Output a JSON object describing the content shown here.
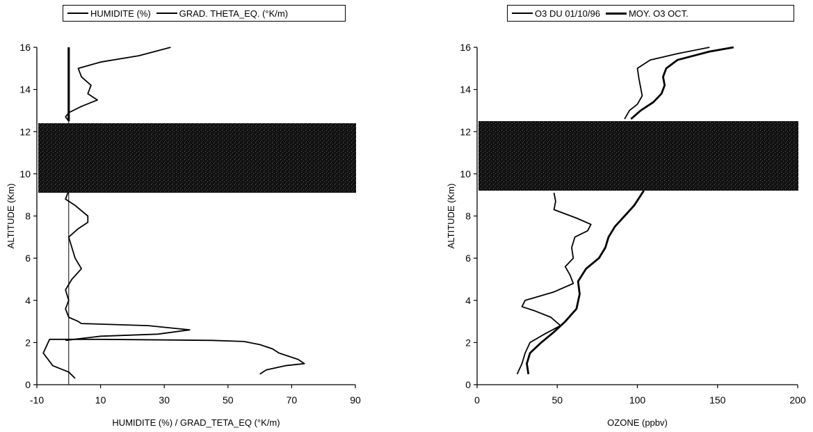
{
  "chart_data": [
    {
      "type": "line",
      "title": "",
      "xlabel": "HUMIDITE (%) / GRAD_TETA_EQ (°K/m)",
      "ylabel": "ALTITUDE (Km)",
      "xlim": [
        -10,
        90
      ],
      "ylim": [
        0,
        16
      ],
      "x_ticks": [
        "-10",
        "10",
        "30",
        "50",
        "70",
        "90"
      ],
      "y_ticks": [
        "0",
        "2",
        "4",
        "6",
        "8",
        "10",
        "12",
        "14",
        "16"
      ],
      "x_tick_values": [
        -10,
        10,
        30,
        50,
        70,
        90
      ],
      "y_tick_values": [
        0,
        2,
        4,
        6,
        8,
        10,
        12,
        14,
        16
      ],
      "legend": "top",
      "shaded_band": [
        9.1,
        12.4
      ],
      "series": [
        {
          "name": "HUMIDITE (%)",
          "points": [
            [
              60,
              0.5
            ],
            [
              62,
              0.7
            ],
            [
              68,
              0.9
            ],
            [
              74,
              1.0
            ],
            [
              72,
              1.2
            ],
            [
              66,
              1.5
            ],
            [
              64,
              1.7
            ],
            [
              60,
              1.9
            ],
            [
              55,
              2.05
            ],
            [
              45,
              2.1
            ],
            [
              10,
              2.15
            ],
            [
              -6,
              2.15
            ],
            [
              -8,
              1.5
            ],
            [
              -5,
              0.9
            ],
            [
              0,
              0.6
            ],
            [
              2,
              0.3
            ]
          ]
        },
        {
          "name": "GRAD. THETA_EQ. (°K/m)",
          "points": [
            [
              -1,
              2.1
            ],
            [
              10,
              2.3
            ],
            [
              28,
              2.4
            ],
            [
              38,
              2.6
            ],
            [
              25,
              2.8
            ],
            [
              4,
              2.9
            ],
            [
              3,
              3.0
            ],
            [
              0,
              3.2
            ],
            [
              -1,
              3.6
            ],
            [
              0,
              4.0
            ],
            [
              -1,
              4.5
            ],
            [
              1,
              5.0
            ],
            [
              4,
              5.5
            ],
            [
              2,
              6.0
            ],
            [
              1,
              6.5
            ],
            [
              0,
              7.0
            ],
            [
              3,
              7.4
            ],
            [
              6,
              7.7
            ],
            [
              6,
              8.0
            ],
            [
              2,
              8.5
            ],
            [
              -1,
              8.8
            ],
            [
              0,
              9.2
            ]
          ]
        },
        {
          "name": "",
          "points": [
            [
              0,
              12.5
            ],
            [
              -1,
              12.7
            ],
            [
              0,
              12.9
            ],
            [
              4,
              13.2
            ],
            [
              9,
              13.5
            ],
            [
              6,
              13.8
            ],
            [
              7,
              14.2
            ],
            [
              4,
              14.6
            ],
            [
              3,
              15.0
            ],
            [
              10,
              15.3
            ],
            [
              22,
              15.6
            ],
            [
              32,
              16.0
            ]
          ]
        },
        {
          "name": "",
          "points": [
            [
              0,
              12.5
            ],
            [
              0,
              16.0
            ]
          ]
        }
      ]
    },
    {
      "type": "line",
      "title": "",
      "xlabel": "OZONE (ppbv)",
      "ylabel": "ALTITUDE (Km)",
      "xlim": [
        0,
        200
      ],
      "ylim": [
        0,
        16
      ],
      "x_ticks": [
        "0",
        "50",
        "100",
        "150",
        "200"
      ],
      "y_ticks": [
        "0",
        "2",
        "4",
        "6",
        "8",
        "10",
        "12",
        "14",
        "16"
      ],
      "x_tick_values": [
        0,
        50,
        100,
        150,
        200
      ],
      "y_tick_values": [
        0,
        2,
        4,
        6,
        8,
        10,
        12,
        14,
        16
      ],
      "legend": "top",
      "shaded_band": [
        9.2,
        12.5
      ],
      "series": [
        {
          "name": "O3 DU 01/10/96",
          "points": [
            [
              25,
              0.5
            ],
            [
              28,
              1.0
            ],
            [
              30,
              1.5
            ],
            [
              33,
              2.0
            ],
            [
              42,
              2.4
            ],
            [
              52,
              2.8
            ],
            [
              46,
              3.2
            ],
            [
              36,
              3.5
            ],
            [
              28,
              3.7
            ],
            [
              30,
              4.0
            ],
            [
              48,
              4.4
            ],
            [
              60,
              4.8
            ],
            [
              58,
              5.2
            ],
            [
              55,
              5.6
            ],
            [
              60,
              6.0
            ],
            [
              59,
              6.5
            ],
            [
              61,
              7.0
            ],
            [
              69,
              7.3
            ],
            [
              71,
              7.6
            ],
            [
              62,
              7.9
            ],
            [
              48,
              8.3
            ],
            [
              49,
              8.7
            ],
            [
              48,
              9.1
            ]
          ]
        },
        {
          "name": "MOY. O3 OCT.",
          "points": [
            [
              32,
              0.5
            ],
            [
              31,
              1.0
            ],
            [
              33,
              1.5
            ],
            [
              40,
              2.0
            ],
            [
              48,
              2.5
            ],
            [
              55,
              3.0
            ],
            [
              62,
              3.6
            ],
            [
              64,
              4.3
            ],
            [
              63,
              4.9
            ],
            [
              68,
              5.5
            ],
            [
              76,
              6.0
            ],
            [
              80,
              6.5
            ],
            [
              82,
              7.0
            ],
            [
              86,
              7.5
            ],
            [
              92,
              8.0
            ],
            [
              98,
              8.5
            ],
            [
              104,
              9.2
            ]
          ]
        },
        {
          "name": "",
          "points": [
            [
              92,
              12.6
            ],
            [
              95,
              13.0
            ],
            [
              100,
              13.3
            ],
            [
              103,
              13.7
            ],
            [
              102,
              14.1
            ],
            [
              101,
              14.5
            ],
            [
              100,
              15.0
            ],
            [
              108,
              15.4
            ],
            [
              125,
              15.7
            ],
            [
              145,
              16.0
            ]
          ]
        },
        {
          "name": "",
          "points": [
            [
              96,
              12.6
            ],
            [
              102,
              13.0
            ],
            [
              110,
              13.4
            ],
            [
              115,
              13.8
            ],
            [
              117,
              14.2
            ],
            [
              116,
              14.6
            ],
            [
              118,
              15.0
            ],
            [
              125,
              15.4
            ],
            [
              145,
              15.8
            ],
            [
              160,
              16.0
            ]
          ]
        }
      ]
    }
  ],
  "legends": [
    {
      "items": [
        {
          "label": "HUMIDITE (%)"
        },
        {
          "label": "GRAD. THETA_EQ. (°K/m)"
        }
      ]
    },
    {
      "items": [
        {
          "label": "O3 DU 01/10/96"
        },
        {
          "label": "MOY. O3 OCT."
        }
      ]
    }
  ]
}
